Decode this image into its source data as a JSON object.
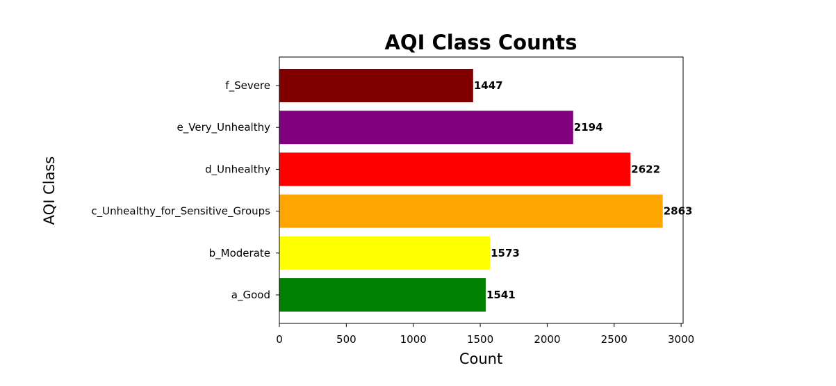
{
  "chart_data": {
    "type": "bar",
    "orientation": "horizontal",
    "title": "AQI Class Counts",
    "xlabel": "Count",
    "ylabel": "AQI Class",
    "xlim": [
      0,
      3015
    ],
    "xticks": [
      0,
      500,
      1000,
      1500,
      2000,
      2500,
      3000
    ],
    "categories": [
      "a_Good",
      "b_Moderate",
      "c_Unhealthy_for_Sensitive_Groups",
      "d_Unhealthy",
      "e_Very_Unhealthy",
      "f_Severe"
    ],
    "values": [
      1541,
      1573,
      2863,
      2622,
      2194,
      1447
    ],
    "colors": [
      "#008000",
      "#ffff00",
      "#ffa500",
      "#ff0000",
      "#800080",
      "#800000"
    ],
    "grid": false,
    "data_labels": true
  }
}
